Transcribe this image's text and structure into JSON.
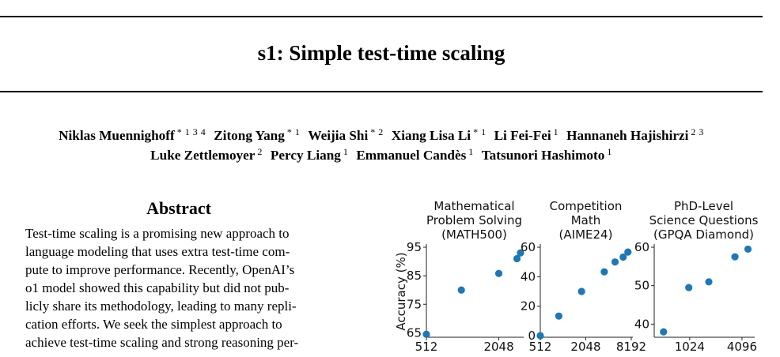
{
  "paper": {
    "title": "s1: Simple test-time scaling",
    "authors_line1": [
      {
        "name": "Niklas Muennighoff",
        "aff": "* 1 3 4"
      },
      {
        "name": "Zitong Yang",
        "aff": "* 1"
      },
      {
        "name": "Weijia Shi",
        "aff": "* 2"
      },
      {
        "name": "Xiang Lisa Li",
        "aff": "* 1"
      },
      {
        "name": "Li Fei-Fei",
        "aff": "1"
      },
      {
        "name": "Hannaneh Hajishirzi",
        "aff": "2 3"
      }
    ],
    "authors_line2": [
      {
        "name": "Luke Zettlemoyer",
        "aff": "2"
      },
      {
        "name": "Percy Liang",
        "aff": "1"
      },
      {
        "name": "Emmanuel Candès",
        "aff": "1"
      },
      {
        "name": "Tatsunori Hashimoto",
        "aff": "1"
      }
    ],
    "abstract_heading": "Abstract",
    "abstract_lines": [
      "Test-time scaling is a promising new approach to",
      "language modeling that uses extra test-time com-",
      "pute to improve performance. Recently, OpenAI’s",
      "o1 model showed this capability but did not pub-",
      "licly share its methodology, leading to many repli-",
      "cation efforts. We seek the simplest approach to",
      "achieve test-time scaling and strong reasoning per-"
    ]
  },
  "chart_data": [
    {
      "type": "scatter",
      "title": [
        "Mathematical",
        "Problem Solving",
        "(MATH500)"
      ],
      "ylabel": "Accuracy (%)",
      "xscale": "log2",
      "xlim": [
        512,
        3200
      ],
      "xticks": [
        512,
        2048
      ],
      "ylim": [
        64,
        95
      ],
      "yticks": [
        65,
        75,
        85,
        95
      ],
      "x": [
        512,
        1000,
        2048,
        2900,
        3100
      ],
      "y": [
        64.5,
        80.0,
        85.8,
        91.0,
        93.0
      ],
      "color": "#1f77b4"
    },
    {
      "type": "scatter",
      "title": [
        "Competition",
        "Math",
        "(AIME24)"
      ],
      "ylabel": "",
      "xscale": "log2",
      "xlim": [
        512,
        8192
      ],
      "xticks": [
        512,
        2048,
        8192
      ],
      "ylim": [
        0,
        60
      ],
      "yticks": [
        0,
        20,
        40,
        60
      ],
      "x": [
        512,
        900,
        1800,
        3600,
        5000,
        6400,
        7400
      ],
      "y": [
        0.0,
        13.3,
        30.0,
        43.3,
        50.0,
        53.3,
        56.7
      ],
      "color": "#1f77b4"
    },
    {
      "type": "scatter",
      "title": [
        "PhD-Level",
        "Science Questions",
        "(GPQA Diamond)"
      ],
      "ylabel": "",
      "xscale": "log2",
      "xlim": [
        400,
        5500
      ],
      "xticks": [
        1024,
        4096
      ],
      "ylim": [
        37,
        60
      ],
      "yticks": [
        40,
        50,
        60
      ],
      "x": [
        512,
        1000,
        1700,
        3400,
        4800
      ],
      "y": [
        38.0,
        49.5,
        51.0,
        57.5,
        59.5
      ],
      "color": "#1f77b4"
    }
  ]
}
